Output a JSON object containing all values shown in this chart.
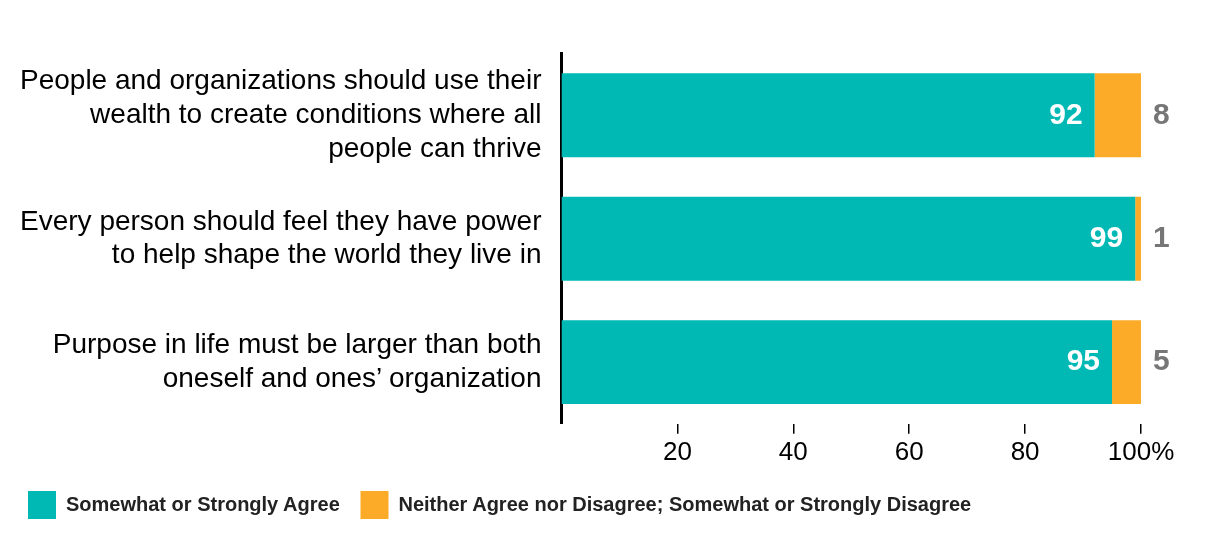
{
  "chart_data": {
    "type": "bar",
    "orientation": "horizontal",
    "stacked": true,
    "categories": [
      "People and organizations should use their wealth to create conditions where all people can thrive",
      "Every person should feel they have power to help shape the world they live in",
      "Purpose in life must be larger than both oneself and ones’ organization"
    ],
    "series": [
      {
        "name": "Somewhat or Strongly Agree",
        "color": "#00b9b5",
        "values": [
          92,
          99,
          95
        ]
      },
      {
        "name": "Neither Agree nor Disagree; Somewhat or Strongly Disagree",
        "color": "#fbab28",
        "values": [
          8,
          1,
          5
        ]
      }
    ],
    "xlim": [
      0,
      100
    ],
    "xticks": [
      20,
      40,
      60,
      80,
      {
        "value": 100,
        "label": "100%"
      }
    ],
    "data_labels": true,
    "legend": "bottom left"
  }
}
